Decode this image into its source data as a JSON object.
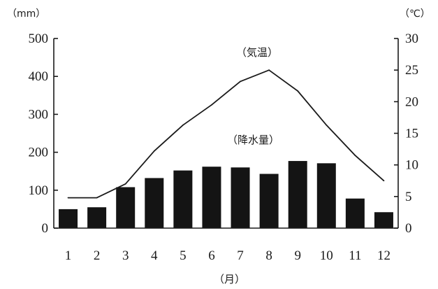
{
  "chart_data": {
    "type": "bar+line",
    "categories": [
      "1",
      "2",
      "3",
      "4",
      "5",
      "6",
      "7",
      "8",
      "9",
      "10",
      "11",
      "12"
    ],
    "series": [
      {
        "name": "降水量",
        "kind": "bar",
        "axis": "left",
        "values": [
          50,
          55,
          108,
          132,
          152,
          162,
          160,
          143,
          177,
          171,
          78,
          42
        ]
      },
      {
        "name": "気温",
        "kind": "line",
        "axis": "right",
        "values": [
          4.8,
          4.8,
          7.0,
          12.2,
          16.3,
          19.5,
          23.2,
          25.0,
          21.7,
          16.3,
          11.5,
          7.5
        ]
      }
    ],
    "xlabel": "（月）",
    "ylabel_left_unit": "（mm）",
    "ylabel_right_unit": "（℃）",
    "ylim_left": [
      0,
      500
    ],
    "ylim_right": [
      0,
      30
    ],
    "yticks_left": [
      "0",
      "100",
      "200",
      "300",
      "400",
      "500"
    ],
    "yticks_right": [
      "0",
      "5",
      "10",
      "15",
      "20",
      "25",
      "30"
    ],
    "annotations": {
      "line_label": "（気温）",
      "bar_label": "（降水量）"
    },
    "grid": false,
    "colors": {
      "bar": "#141414",
      "line": "#1a1a1a"
    }
  }
}
